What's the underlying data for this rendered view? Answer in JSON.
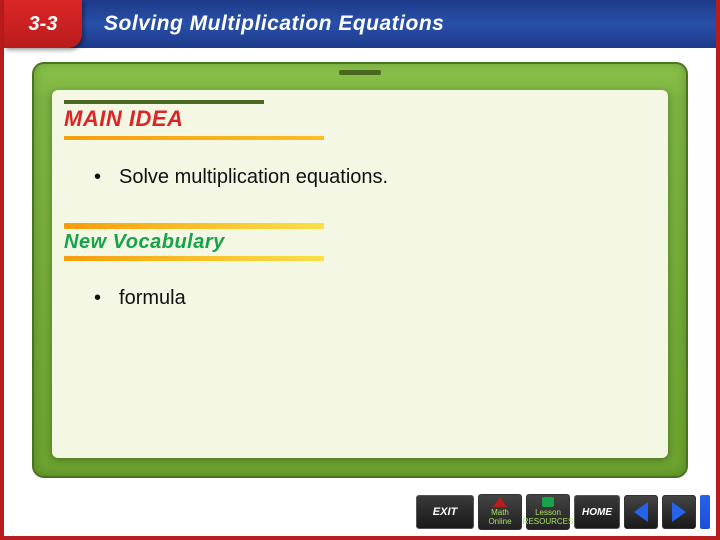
{
  "header": {
    "chapter": "3-3",
    "title": "Solving Multiplication Equations",
    "bg_color": "#2850a8",
    "tab_color": "#b91c1c"
  },
  "frame": {
    "border_color": "#6ba22e",
    "panel_bg": "#f5f7e5"
  },
  "main_idea": {
    "label": "MAIN IDEA",
    "label_color": "#dc2626",
    "bar_color": "#f59e0b",
    "bullet": "Solve multiplication equations.",
    "fontsize": 20
  },
  "new_vocab": {
    "label": "New Vocabulary",
    "label_color": "#16a34a",
    "bar_color": "#f59e0b",
    "bullet": "formula",
    "fontsize": 20
  },
  "footer": {
    "exit": "EXIT",
    "math_online": "Math Online",
    "lesson_resources": "Lesson RESOURCES",
    "home": "HOME"
  },
  "colors": {
    "slide_border": "#b91c1c",
    "arrow": "#2563eb"
  }
}
